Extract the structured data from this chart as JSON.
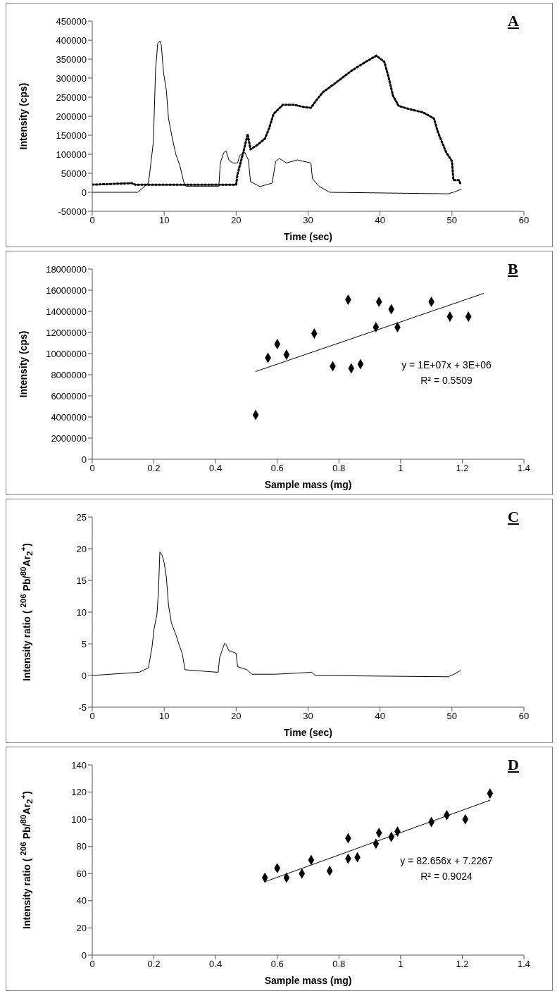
{
  "chart_data": [
    {
      "type": "line",
      "title": "A",
      "xlabel": "Time (sec)",
      "ylabel": "Intensity (cps)",
      "xlim": [
        0,
        60
      ],
      "xticks": [
        0,
        10,
        20,
        30,
        40,
        50,
        60
      ],
      "ylim": [
        -50000,
        450000
      ],
      "yticks": [
        -50000,
        0,
        50000,
        100000,
        150000,
        200000,
        250000,
        300000,
        350000,
        400000,
        450000
      ],
      "series": [
        {
          "color": "#000000",
          "line_style": "solid",
          "x": [
            0,
            6.3,
            7.8,
            8.0,
            8.5,
            8.8,
            9.1,
            9.4,
            9.6,
            9.9,
            10.3,
            10.6,
            11.1,
            11.6,
            12.2,
            12.7,
            13,
            17.6,
            17.8,
            18.3,
            18.6,
            19,
            19.5,
            20.2,
            20.5,
            21.2,
            21.7,
            22,
            23.3,
            25,
            25.5,
            26,
            27,
            28.5,
            30.4,
            30.6,
            31.5,
            33,
            49.5,
            50.5,
            51.3
          ],
          "values": [
            0,
            0,
            24000,
            52000,
            133000,
            323000,
            391000,
            398000,
            387000,
            316000,
            268000,
            194000,
            145000,
            101000,
            69000,
            28000,
            16000,
            16000,
            77000,
            105000,
            109000,
            85000,
            77000,
            77000,
            97000,
            105000,
            85000,
            28000,
            15000,
            24000,
            81000,
            89000,
            77000,
            85000,
            77000,
            36000,
            16000,
            0,
            -4000,
            2000,
            8000
          ]
        },
        {
          "color": "#000000",
          "line_style": "dotted",
          "x": [
            0,
            5.5,
            6,
            7.5,
            11.4,
            20,
            20.2,
            21,
            21.6,
            22,
            23,
            24,
            24.6,
            25.2,
            26.5,
            28,
            29.5,
            30.4,
            31,
            32,
            34,
            36,
            38,
            39.5,
            40.6,
            41.2,
            41.8,
            42.6,
            44,
            46,
            47.5,
            48,
            48.5,
            49.2,
            50,
            50.2,
            51,
            51.2
          ],
          "values": [
            20000,
            24000,
            20000,
            20000,
            20000,
            20000,
            48000,
            105000,
            153000,
            113000,
            125000,
            141000,
            169000,
            206000,
            230000,
            230000,
            224000,
            222000,
            238000,
            262000,
            290000,
            319000,
            343000,
            359000,
            343000,
            302000,
            254000,
            227000,
            219000,
            210000,
            194000,
            161000,
            137000,
            105000,
            82000,
            32000,
            32000,
            20000
          ]
        }
      ]
    },
    {
      "type": "scatter",
      "title": "B",
      "xlabel": "Sample mass (mg)",
      "ylabel": "Intensity (cps)",
      "xlim": [
        0,
        1.4
      ],
      "xticks": [
        0,
        0.2,
        0.4,
        0.6,
        0.8,
        1,
        1.2,
        1.4
      ],
      "ylim": [
        0,
        18000000
      ],
      "yticks": [
        0,
        2000000,
        4000000,
        6000000,
        8000000,
        10000000,
        12000000,
        14000000,
        16000000,
        18000000
      ],
      "annotations": [
        "y = 1E+07x + 3E+06",
        "R² = 0.5509"
      ],
      "series": [
        {
          "color": "#000000",
          "marker": "diamond",
          "x": [
            1.22,
            1.16,
            1.1,
            0.99,
            0.97,
            0.93,
            0.92,
            0.87,
            0.84,
            0.83,
            0.78,
            0.72,
            0.63,
            0.6,
            0.57,
            0.53
          ],
          "values": [
            13500000,
            13500000,
            14900000,
            12500000,
            14200000,
            14900000,
            12500000,
            9000000,
            8600000,
            15100000,
            8800000,
            11900000,
            9900000,
            10900000,
            9600000,
            4200000
          ]
        },
        {
          "type": "line",
          "color": "#000000",
          "x": [
            0.53,
            1.27
          ],
          "values": [
            8300000,
            15700000
          ]
        }
      ]
    },
    {
      "type": "line",
      "title": "C",
      "xlabel": "Time (sec)",
      "ylabel": "Intensity ratio ( $^{206}$ Pb/$^{80}$Ar$_{2}$$^{+}$)",
      "xlim": [
        0,
        60
      ],
      "xticks": [
        0,
        10,
        20,
        30,
        40,
        50,
        60
      ],
      "ylim": [
        -5,
        25
      ],
      "yticks": [
        -5,
        0,
        5,
        10,
        15,
        20,
        25
      ],
      "series": [
        {
          "color": "#000000",
          "line_style": "solid",
          "x": [
            0,
            6.5,
            7.8,
            8.3,
            8.6,
            9,
            9.2,
            9.4,
            9.7,
            10,
            10.3,
            10.6,
            11,
            11.6,
            12,
            12.5,
            12.9,
            17.5,
            17.7,
            18.4,
            18.6,
            19,
            20,
            20.2,
            21.5,
            22.2,
            25.5,
            30.5,
            31,
            49.5,
            50.3,
            51.2
          ],
          "values": [
            0,
            0.5,
            1.2,
            4.4,
            7.4,
            9.7,
            13.2,
            19.5,
            19,
            17.8,
            15.5,
            11.1,
            8.3,
            6.5,
            5.1,
            3.5,
            0.9,
            0.5,
            2.8,
            5.1,
            4.9,
            3.9,
            3.5,
            1.4,
            0.9,
            0.2,
            0.2,
            0.5,
            0,
            -0.2,
            0.2,
            0.8
          ]
        }
      ]
    },
    {
      "type": "scatter",
      "title": "D",
      "xlabel": "Sample mass (mg)",
      "ylabel": "Intensity ratio ( $^{206}$ Pb/$^{80}$Ar$_{2}$$^{+}$)",
      "xlim": [
        0,
        1.4
      ],
      "xticks": [
        0,
        0.2,
        0.4,
        0.6,
        0.8,
        1,
        1.2,
        1.4
      ],
      "ylim": [
        0,
        140
      ],
      "yticks": [
        0,
        20,
        40,
        60,
        80,
        100,
        120,
        140
      ],
      "annotations": [
        "y = 82.656x + 7.2267",
        "R² = 0.9024"
      ],
      "series": [
        {
          "color": "#000000",
          "marker": "diamond",
          "x": [
            1.29,
            1.21,
            1.15,
            1.1,
            0.99,
            0.97,
            0.93,
            0.92,
            0.86,
            0.83,
            0.83,
            0.77,
            0.71,
            0.68,
            0.6,
            0.63,
            0.56
          ],
          "values": [
            119,
            100,
            103,
            98,
            91,
            87,
            90,
            82,
            72,
            71,
            86,
            62,
            70,
            60,
            64,
            57,
            57
          ]
        },
        {
          "type": "line",
          "color": "#000000",
          "x": [
            0.56,
            1.29
          ],
          "values": [
            54,
            114
          ]
        }
      ]
    }
  ]
}
